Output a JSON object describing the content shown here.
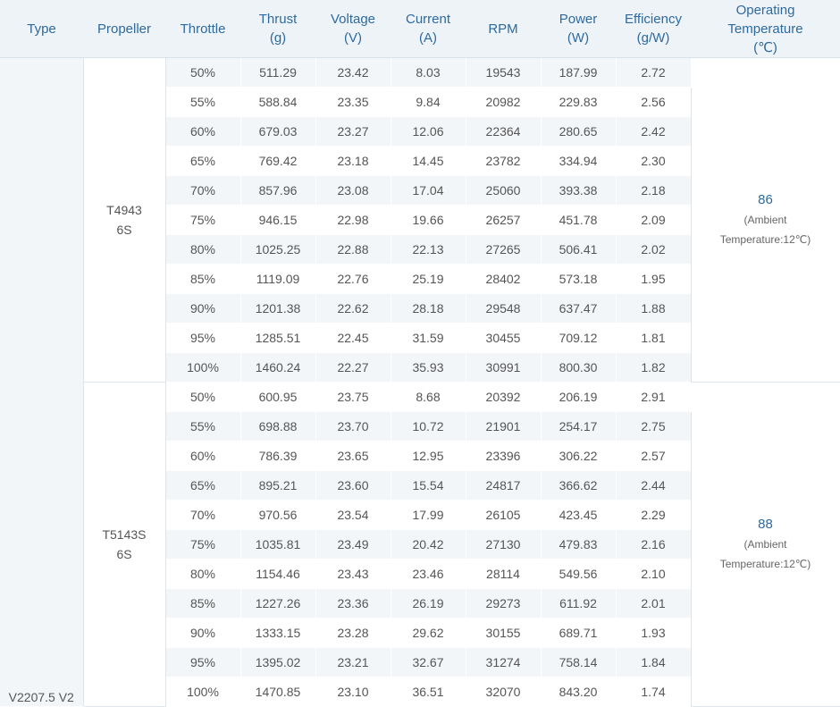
{
  "headers": {
    "type": "Type",
    "propeller": "Propeller",
    "throttle": "Throttle",
    "thrust": [
      "Thrust",
      "(g)"
    ],
    "voltage": [
      "Voltage",
      "(V)"
    ],
    "current": [
      "Current",
      "(A)"
    ],
    "rpm": "RPM",
    "power": [
      "Power",
      "(W)"
    ],
    "efficiency": [
      "Efficiency",
      "(g/W)"
    ],
    "temperature": [
      "Operating",
      "Temperature",
      "(℃)"
    ]
  },
  "type_value": "V2207.5 V2",
  "groups": [
    {
      "propeller": [
        "T4943",
        "6S"
      ],
      "temperature": "86",
      "temperature_note": [
        "(Ambient",
        "Temperature:12℃)"
      ],
      "rows": [
        [
          "50%",
          "511.29",
          "23.42",
          "8.03",
          "19543",
          "187.99",
          "2.72"
        ],
        [
          "55%",
          "588.84",
          "23.35",
          "9.84",
          "20982",
          "229.83",
          "2.56"
        ],
        [
          "60%",
          "679.03",
          "23.27",
          "12.06",
          "22364",
          "280.65",
          "2.42"
        ],
        [
          "65%",
          "769.42",
          "23.18",
          "14.45",
          "23782",
          "334.94",
          "2.30"
        ],
        [
          "70%",
          "857.96",
          "23.08",
          "17.04",
          "25060",
          "393.38",
          "2.18"
        ],
        [
          "75%",
          "946.15",
          "22.98",
          "19.66",
          "26257",
          "451.78",
          "2.09"
        ],
        [
          "80%",
          "1025.25",
          "22.88",
          "22.13",
          "27265",
          "506.41",
          "2.02"
        ],
        [
          "85%",
          "1119.09",
          "22.76",
          "25.19",
          "28402",
          "573.18",
          "1.95"
        ],
        [
          "90%",
          "1201.38",
          "22.62",
          "28.18",
          "29548",
          "637.47",
          "1.88"
        ],
        [
          "95%",
          "1285.51",
          "22.45",
          "31.59",
          "30455",
          "709.12",
          "1.81"
        ],
        [
          "100%",
          "1460.24",
          "22.27",
          "35.93",
          "30991",
          "800.30",
          "1.82"
        ]
      ]
    },
    {
      "propeller": [
        "T5143S",
        "6S"
      ],
      "temperature": "88",
      "temperature_note": [
        "(Ambient",
        "Temperature:12℃)"
      ],
      "rows": [
        [
          "50%",
          "600.95",
          "23.75",
          "8.68",
          "20392",
          "206.19",
          "2.91"
        ],
        [
          "55%",
          "698.88",
          "23.70",
          "10.72",
          "21901",
          "254.17",
          "2.75"
        ],
        [
          "60%",
          "786.39",
          "23.65",
          "12.95",
          "23396",
          "306.22",
          "2.57"
        ],
        [
          "65%",
          "895.21",
          "23.60",
          "15.54",
          "24817",
          "366.62",
          "2.44"
        ],
        [
          "70%",
          "970.56",
          "23.54",
          "17.99",
          "26105",
          "423.45",
          "2.29"
        ],
        [
          "75%",
          "1035.81",
          "23.49",
          "20.42",
          "27130",
          "479.83",
          "2.16"
        ],
        [
          "80%",
          "1154.46",
          "23.43",
          "23.46",
          "28114",
          "549.56",
          "2.10"
        ],
        [
          "85%",
          "1227.26",
          "23.36",
          "26.19",
          "29273",
          "611.92",
          "2.01"
        ],
        [
          "90%",
          "1333.15",
          "23.28",
          "29.62",
          "30155",
          "689.71",
          "1.93"
        ],
        [
          "95%",
          "1395.02",
          "23.21",
          "32.67",
          "31274",
          "758.14",
          "1.84"
        ],
        [
          "100%",
          "1470.85",
          "23.10",
          "36.51",
          "32070",
          "843.20",
          "1.74"
        ]
      ]
    }
  ]
}
